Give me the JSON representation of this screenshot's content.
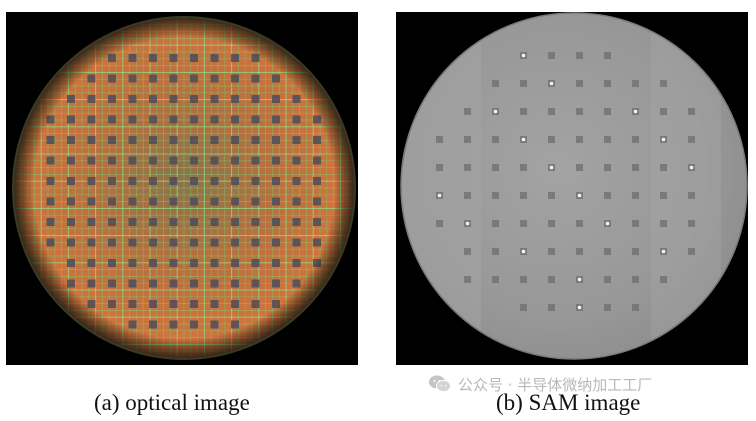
{
  "figure": {
    "captions": {
      "a": "(a) optical image",
      "b": "(b) SAM image"
    },
    "watermark": {
      "text": "公众号 · 半导体微纳加工工厂",
      "icon": "wechat-icon"
    }
  },
  "colors": {
    "background": "#000000",
    "optical_wafer": "#c8703e",
    "optical_grid": "#7fd07a",
    "sam_wafer": "#9c9c9c",
    "caption_text": "#111111",
    "watermark_text": "#b9b9b9"
  }
}
